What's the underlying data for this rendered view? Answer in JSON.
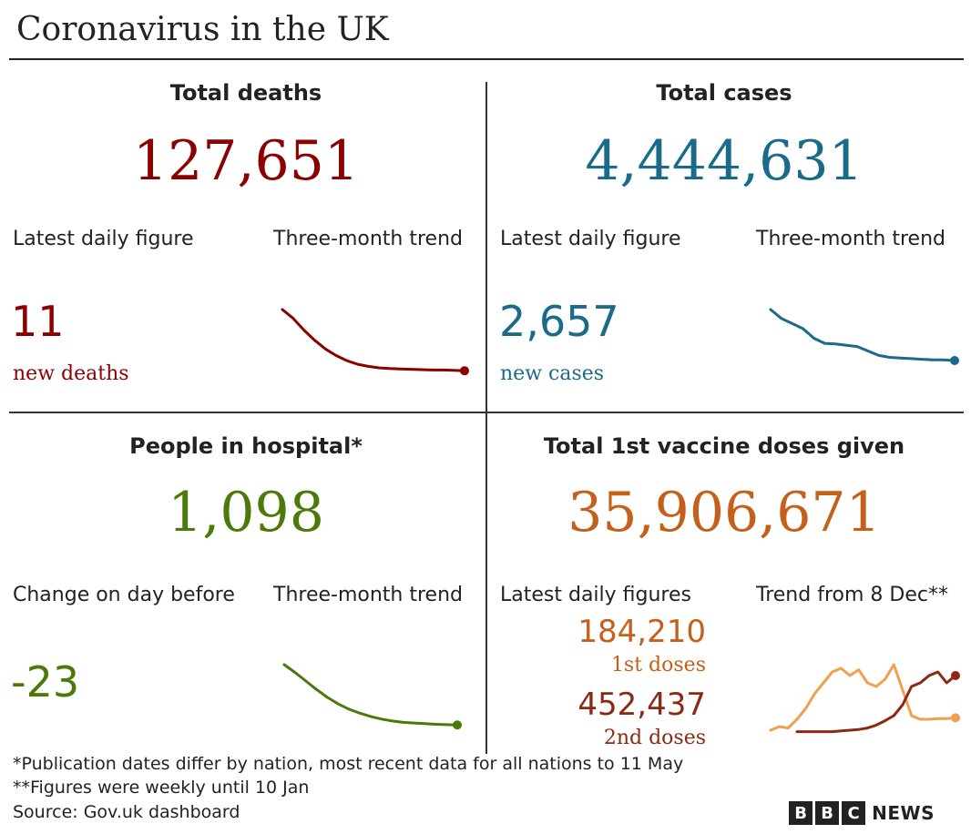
{
  "title": "Coronavirus in the UK",
  "colors": {
    "deaths": "#8b0000",
    "cases": "#1a6a8a",
    "hospital": "#4a7a0a",
    "vaccine_total": "#c4601a",
    "first_doses": "#c4601a",
    "second_doses": "#8b2a10",
    "first_doses_line": "#f0a050",
    "second_doses_line": "#8b2a10"
  },
  "deaths": {
    "heading": "Total deaths",
    "total": "127,651",
    "latest_label": "Latest daily figure",
    "trend_label": "Three-month trend",
    "latest_value": "11",
    "latest_sub": "new deaths"
  },
  "cases": {
    "heading": "Total cases",
    "total": "4,444,631",
    "latest_label": "Latest daily figure",
    "trend_label": "Three-month trend",
    "latest_value": "2,657",
    "latest_sub": "new cases"
  },
  "hospital": {
    "heading": "People in hospital*",
    "total": "1,098",
    "latest_label": "Change on day before",
    "trend_label": "Three-month trend",
    "latest_value": "-23"
  },
  "vaccine": {
    "heading": "Total 1st vaccine doses given",
    "total": "35,906,671",
    "latest_label": "Latest daily figures",
    "trend_label": "Trend from 8 Dec**",
    "first_value": "184,210",
    "first_sub": "1st doses",
    "second_value": "452,437",
    "second_sub": "2nd doses"
  },
  "footnotes": {
    "line1": "*Publication dates differ by nation, most recent data for all nations to 11 May",
    "line2": "**Figures were weekly until 10 Jan",
    "source": "Source: Gov.uk dashboard"
  },
  "logo": {
    "letters": [
      "B",
      "B",
      "C"
    ],
    "word": "NEWS"
  },
  "chart_data": [
    {
      "type": "line",
      "name": "deaths-trend",
      "series": [
        {
          "values": [
            100,
            88,
            72,
            58,
            46,
            37,
            30,
            25,
            22,
            20,
            19,
            18.5,
            18,
            17.5,
            17,
            17,
            16.5,
            16
          ]
        }
      ]
    },
    {
      "type": "line",
      "name": "cases-trend",
      "series": [
        {
          "values": [
            100,
            86,
            78,
            70,
            55,
            47,
            46,
            44,
            42,
            35,
            28,
            25,
            24,
            23,
            22,
            21,
            21,
            20
          ]
        }
      ]
    },
    {
      "type": "line",
      "name": "hospital-trend",
      "series": [
        {
          "values": [
            100,
            88,
            75,
            62,
            50,
            40,
            32,
            26,
            21,
            17,
            14,
            12,
            11,
            10,
            9,
            8.5,
            8
          ]
        }
      ]
    },
    {
      "type": "line",
      "name": "vaccine-trend",
      "series": [
        {
          "name": "1st doses",
          "values": [
            5,
            10,
            8,
            20,
            35,
            55,
            70,
            85,
            90,
            80,
            88,
            70,
            65,
            75,
            95,
            60,
            25,
            20,
            20,
            21,
            21,
            22
          ]
        },
        {
          "name": "2nd doses",
          "values": [
            null,
            null,
            null,
            3,
            3,
            3,
            3,
            3,
            4,
            5,
            6,
            8,
            12,
            18,
            25,
            40,
            65,
            70,
            80,
            85,
            70,
            80
          ]
        }
      ]
    }
  ]
}
